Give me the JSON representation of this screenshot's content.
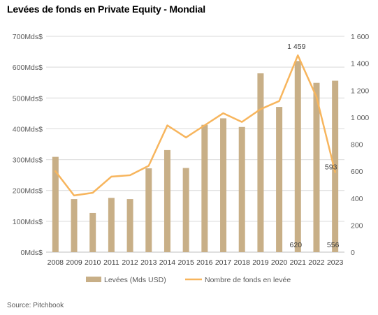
{
  "chart_data": {
    "type": "bar",
    "title": "Levées de fonds en Private Equity - Mondial",
    "source": "Source:  Pitchbook",
    "categories": [
      "2008",
      "2009",
      "2010",
      "2011",
      "2012",
      "2013",
      "2014",
      "2015",
      "2016",
      "2017",
      "2018",
      "2019",
      "2020",
      "2021",
      "2022",
      "2023"
    ],
    "y_left": {
      "range": [
        0,
        700
      ],
      "ticks": [
        0,
        100,
        200,
        300,
        400,
        500,
        600,
        700
      ],
      "tick_labels": [
        "0Mds$",
        "100Mds$",
        "200Mds$",
        "300Mds$",
        "400Mds$",
        "500Mds$",
        "600Mds$",
        "700Mds$"
      ]
    },
    "y_right": {
      "range": [
        0,
        1600
      ],
      "ticks": [
        0,
        200,
        400,
        600,
        800,
        1000,
        1200,
        1400,
        1600
      ],
      "tick_labels": [
        "0",
        "200",
        "400",
        "600",
        "800",
        "1 000",
        "1 200",
        "1 400",
        "1 600"
      ]
    },
    "series": [
      {
        "name": "Levées (Mds USD)",
        "type": "bar",
        "axis": "left",
        "color": "#C8AF87",
        "values": [
          309,
          172,
          127,
          176,
          172,
          272,
          331,
          273,
          413,
          434,
          406,
          580,
          471,
          620,
          549,
          556
        ],
        "data_labels": [
          {
            "index": 13,
            "text": "620"
          },
          {
            "index": 15,
            "text": "556"
          }
        ]
      },
      {
        "name": "Nombre de fonds en levée",
        "type": "line",
        "axis": "right",
        "color": "#F7B55D",
        "values": [
          600,
          420,
          440,
          560,
          570,
          640,
          940,
          850,
          940,
          1030,
          965,
          1060,
          1120,
          1459,
          1150,
          593
        ],
        "data_labels": [
          {
            "index": 13,
            "text": "1 459"
          },
          {
            "index": 15,
            "text": "593"
          }
        ]
      }
    ],
    "grid": true,
    "legend": "bottom"
  }
}
